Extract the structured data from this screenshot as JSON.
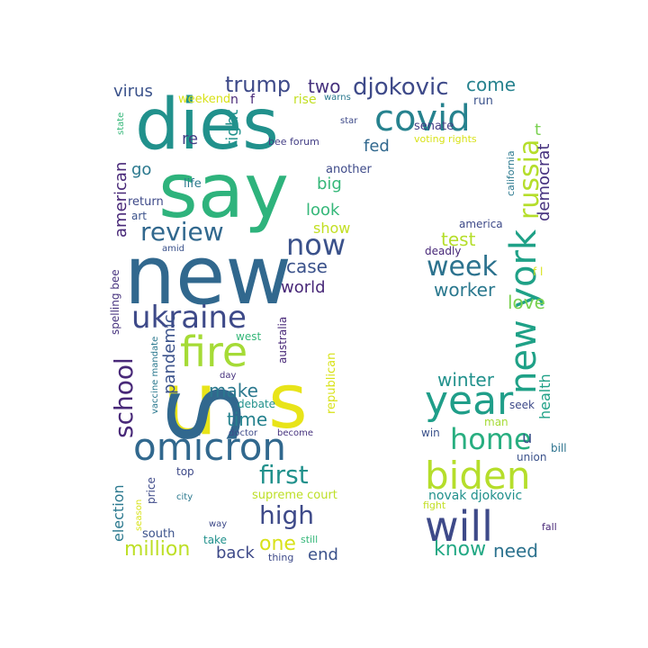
{
  "words": [
    {
      "text": "dies",
      "color": "#21918c"
    },
    {
      "text": "say",
      "color": "#2eb37c"
    },
    {
      "text": "new",
      "color": "#31688e"
    },
    {
      "text": "u",
      "color": "#e8e419"
    },
    {
      "text": "s",
      "color": "#e8e419"
    },
    {
      "text": "S",
      "color": "#31688e"
    },
    {
      "text": "omicron",
      "color": "#31688e"
    },
    {
      "text": "ukraine",
      "color": "#3e4a89"
    },
    {
      "text": "fire",
      "color": "#a5db36"
    },
    {
      "text": "covid",
      "color": "#26828e"
    },
    {
      "text": "review",
      "color": "#31688e"
    },
    {
      "text": "now",
      "color": "#3b528b"
    },
    {
      "text": "school",
      "color": "#482878"
    },
    {
      "text": "djokovic",
      "color": "#3e4a89"
    },
    {
      "text": "trump",
      "color": "#3e4a89"
    },
    {
      "text": "two",
      "color": "#46327e"
    },
    {
      "text": "come",
      "color": "#26828e"
    },
    {
      "text": "case",
      "color": "#3b528b"
    },
    {
      "text": "world",
      "color": "#482878"
    },
    {
      "text": "big",
      "color": "#35b779"
    },
    {
      "text": "look",
      "color": "#35b779"
    },
    {
      "text": "show",
      "color": "#c2df23"
    },
    {
      "text": "fed",
      "color": "#31688e"
    },
    {
      "text": "virus",
      "color": "#3b528b"
    },
    {
      "text": "re",
      "color": "#433e85"
    },
    {
      "text": "go",
      "color": "#2a788e"
    },
    {
      "text": "right",
      "color": "#21918c"
    },
    {
      "text": "american",
      "color": "#482878"
    },
    {
      "text": "pandemic",
      "color": "#3b528b"
    },
    {
      "text": "make",
      "color": "#2a788e"
    },
    {
      "text": "time",
      "color": "#26828e"
    },
    {
      "text": "first",
      "color": "#21918c"
    },
    {
      "text": "high",
      "color": "#3e4a89"
    },
    {
      "text": "one",
      "color": "#d8e219"
    },
    {
      "text": "million",
      "color": "#bddf26"
    },
    {
      "text": "back",
      "color": "#3e4a89"
    },
    {
      "text": "end",
      "color": "#3b528b"
    },
    {
      "text": "election",
      "color": "#2a788e"
    },
    {
      "text": "new york",
      "color": "#1fa187"
    },
    {
      "text": "russia",
      "color": "#b5de2b"
    },
    {
      "text": "week",
      "color": "#2c728e"
    },
    {
      "text": "worker",
      "color": "#2a788e"
    },
    {
      "text": "test",
      "color": "#b5de2b"
    },
    {
      "text": "love",
      "color": "#7ad151"
    },
    {
      "text": "democrat",
      "color": "#46327e"
    },
    {
      "text": "year",
      "color": "#1f9e89"
    },
    {
      "text": "home",
      "color": "#28ae80"
    },
    {
      "text": "biden",
      "color": "#b5de2b"
    },
    {
      "text": "will",
      "color": "#3e4a89"
    },
    {
      "text": "know",
      "color": "#22a884"
    },
    {
      "text": "need",
      "color": "#2c728e"
    },
    {
      "text": "winter",
      "color": "#21918c"
    },
    {
      "text": "health",
      "color": "#1fa187"
    },
    {
      "text": "novak djokovic",
      "color": "#21918c"
    },
    {
      "text": "supreme court",
      "color": "#bddf26"
    },
    {
      "text": "spelling bee",
      "color": "#46327e"
    },
    {
      "text": "vaccine mandate",
      "color": "#2a788e"
    },
    {
      "text": "voting rights",
      "color": "#d8e219"
    },
    {
      "text": "bee forum",
      "color": "#433e85"
    },
    {
      "text": "australia",
      "color": "#482878"
    },
    {
      "text": "republican",
      "color": "#d8e219"
    },
    {
      "text": "california",
      "color": "#2a788e"
    },
    {
      "text": "weekend",
      "color": "#d8e219"
    },
    {
      "text": "state",
      "color": "#35b779"
    },
    {
      "text": "rise",
      "color": "#c2df23"
    },
    {
      "text": "warns",
      "color": "#2a788e"
    },
    {
      "text": "run",
      "color": "#3b528b"
    },
    {
      "text": "senate",
      "color": "#433e85"
    },
    {
      "text": "star",
      "color": "#3e4a89"
    },
    {
      "text": "life",
      "color": "#2a788e"
    },
    {
      "text": "another",
      "color": "#3e4a89"
    },
    {
      "text": "return",
      "color": "#3e4a89"
    },
    {
      "text": "art",
      "color": "#3b528b"
    },
    {
      "text": "amid",
      "color": "#3b528b"
    },
    {
      "text": "america",
      "color": "#3e4a89"
    },
    {
      "text": "deadly",
      "color": "#482878"
    },
    {
      "text": "west",
      "color": "#35b779"
    },
    {
      "text": "day",
      "color": "#46327e"
    },
    {
      "text": "debate",
      "color": "#21918c"
    },
    {
      "text": "doctor",
      "color": "#3e4a89"
    },
    {
      "text": "become",
      "color": "#46327e"
    },
    {
      "text": "seek",
      "color": "#3e4a89"
    },
    {
      "text": "man",
      "color": "#a5db36"
    },
    {
      "text": "win",
      "color": "#3b528b"
    },
    {
      "text": "bill",
      "color": "#2c728e"
    },
    {
      "text": "union",
      "color": "#3b528b"
    },
    {
      "text": "fight",
      "color": "#c2df23"
    },
    {
      "text": "fall",
      "color": "#482878"
    },
    {
      "text": "top",
      "color": "#3e4a89"
    },
    {
      "text": "price",
      "color": "#3e4a89"
    },
    {
      "text": "city",
      "color": "#2a788e"
    },
    {
      "text": "season",
      "color": "#d8e219"
    },
    {
      "text": "south",
      "color": "#3b528b"
    },
    {
      "text": "way",
      "color": "#3e4a89"
    },
    {
      "text": "take",
      "color": "#21918c"
    },
    {
      "text": "thing",
      "color": "#3e4a89"
    },
    {
      "text": "still",
      "color": "#35b779"
    },
    {
      "text": "n",
      "color": "#482878"
    },
    {
      "text": "f",
      "color": "#482878"
    },
    {
      "text": "t",
      "color": "#7ad151"
    },
    {
      "text": "f l",
      "color": "#d8e219"
    },
    {
      "text": "u",
      "color": "#3b528b"
    }
  ]
}
